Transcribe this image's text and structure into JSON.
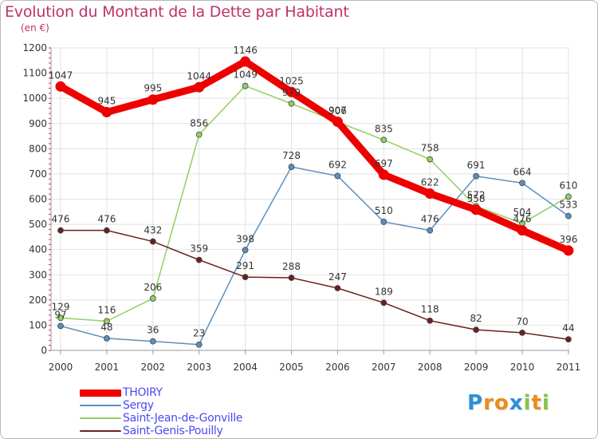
{
  "title": "Evolution du Montant de la Dette par Habitant",
  "unit_label": "(en €)",
  "logo": {
    "text": "Proxiti",
    "letters": [
      {
        "ch": "P",
        "color": "#2e8fd6"
      },
      {
        "ch": "r",
        "color": "#f08a1c"
      },
      {
        "ch": "o",
        "color": "#f08a1c"
      },
      {
        "ch": "x",
        "color": "#2e8fd6"
      },
      {
        "ch": "i",
        "color": "#8bc34a"
      },
      {
        "ch": "t",
        "color": "#f08a1c"
      },
      {
        "ch": "i",
        "color": "#8bc34a"
      }
    ]
  },
  "chart_data": {
    "type": "line",
    "title": "Evolution du Montant de la Dette par Habitant",
    "ylabel": "(en €)",
    "xlabel": "",
    "x": [
      "2000",
      "2001",
      "2002",
      "2003",
      "2004",
      "2005",
      "2006",
      "2007",
      "2008",
      "2009",
      "2010",
      "2011"
    ],
    "ylim": [
      0,
      1200
    ],
    "yticks": [
      0,
      100,
      200,
      300,
      400,
      500,
      600,
      700,
      800,
      900,
      1000,
      1100,
      1200
    ],
    "grid": true,
    "legend_position": "bottom-left",
    "series": [
      {
        "name": "THOIRY",
        "color": "#ee0000",
        "thick": true,
        "values": [
          1047,
          945,
          995,
          1044,
          1146,
          1025,
          907,
          697,
          622,
          558,
          476,
          396
        ]
      },
      {
        "name": "Sergy",
        "color": "#5b8fbf",
        "thick": false,
        "values": [
          97,
          48,
          36,
          23,
          398,
          728,
          692,
          510,
          476,
          691,
          664,
          533
        ]
      },
      {
        "name": "Saint-Jean-de-Gonville",
        "color": "#8fd060",
        "thick": false,
        "values": [
          129,
          116,
          206,
          856,
          1049,
          979,
          906,
          835,
          758,
          572,
          504,
          610
        ]
      },
      {
        "name": "Saint-Genis-Pouilly",
        "color": "#6b2020",
        "thick": false,
        "values": [
          476,
          476,
          432,
          359,
          291,
          288,
          247,
          189,
          118,
          82,
          70,
          44
        ]
      }
    ]
  }
}
